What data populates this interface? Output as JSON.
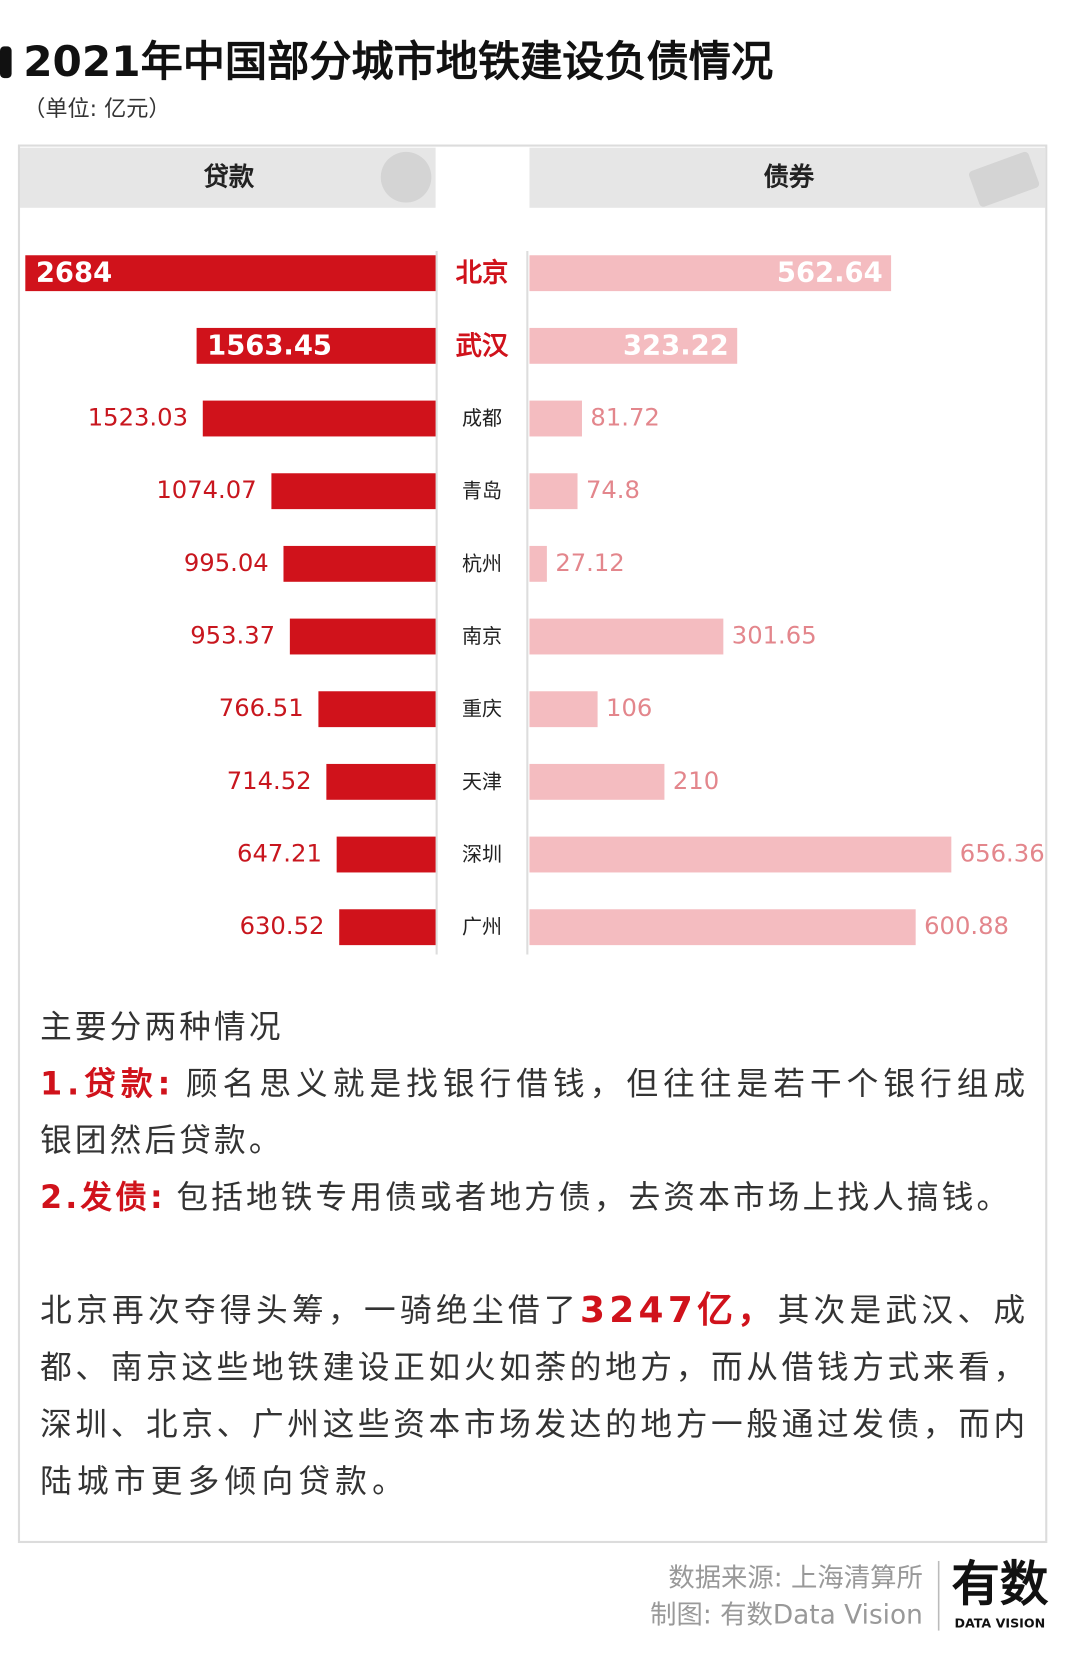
{
  "header": {
    "title": "2021年中国部分城市地铁建设负债情况",
    "unit": "（单位: 亿元）"
  },
  "chart_data": {
    "type": "butterfly_bar",
    "categories": [
      "北京",
      "武汉",
      "成都",
      "青岛",
      "杭州",
      "南京",
      "重庆",
      "天津",
      "深圳",
      "广州"
    ],
    "series": [
      {
        "name": "贷款",
        "color": "#d0121b",
        "values": [
          2684,
          1563.45,
          1523.03,
          1074.07,
          995.04,
          953.37,
          766.51,
          714.52,
          647.21,
          630.52
        ]
      },
      {
        "name": "债券",
        "color": "#f4bcc0",
        "values": [
          562.64,
          323.22,
          81.72,
          74.8,
          27.12,
          301.65,
          106,
          210,
          656.36,
          600.88
        ]
      }
    ]
  },
  "notes": {
    "heading": "主要分两种情况",
    "items": [
      {
        "label": "1.贷款:",
        "lines": [
          "顾名思义就是找银行借钱，但往往是若干个银行组成",
          "银团然后贷款。"
        ]
      },
      {
        "label": "2.发债:",
        "lines": [
          "包括地铁专用债或者地方债，去资本市场上找人搞钱。"
        ]
      }
    ]
  },
  "summary": {
    "lines": [
      [
        "北京再次夺得头筹，一骑绝尘借了",
        "3247亿，",
        "其次是武汉、成"
      ],
      [
        "都、南京这些地铁建设正如火如荼的地方，而从借钱方式来看，"
      ],
      [
        "深圳、北京、广州这些资本市场发达的地方一般通过发债，而内"
      ],
      [
        "陆城市更多倾向贷款。"
      ]
    ]
  },
  "footer": {
    "source": "数据来源: 上海清算所",
    "credit": "制图: 有数Data Vision",
    "logo": "有数",
    "logo_sub": "DATA VISION"
  }
}
